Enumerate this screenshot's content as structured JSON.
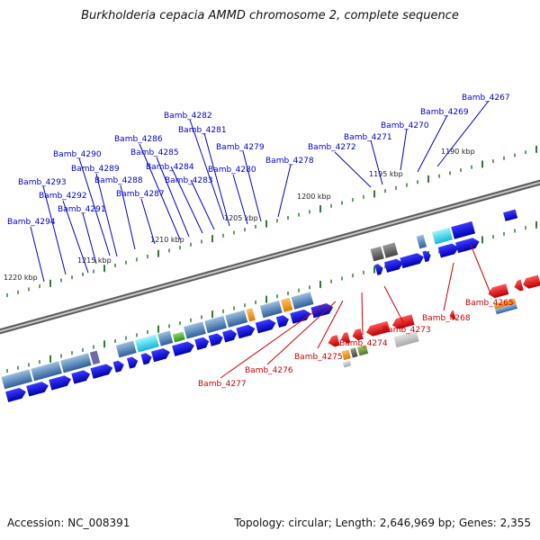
{
  "title": "Burkholderia cepacia AMMD chromosome 2, complete sequence",
  "footer": {
    "accession": "Accession: NC_008391",
    "summary": "Topology: circular; Length: 2,646,969 bp; Genes: 2,355"
  },
  "colors": {
    "forward_label": "#0000cc",
    "reverse_label": "#cc0000",
    "forward_gene": "#1a1aee",
    "reverse_gene": "#ee1111",
    "tick": "#2e7d2e",
    "backbone": "#7a7a7a"
  },
  "scale_labels": [
    "1190 kbp",
    "1195 kbp",
    "1200 kbp",
    "1205 kbp",
    "1210 kbp",
    "1215 kbp",
    "1220 kbp"
  ],
  "forward_genes": [
    "Bamb_4267",
    "Bamb_4269",
    "Bamb_4270",
    "Bamb_4271",
    "Bamb_4272",
    "Bamb_4278",
    "Bamb_4279",
    "Bamb_4280",
    "Bamb_4281",
    "Bamb_4282",
    "Bamb_4283",
    "Bamb_4284",
    "Bamb_4285",
    "Bamb_4286",
    "Bamb_4287",
    "Bamb_4288",
    "Bamb_4289",
    "Bamb_4290",
    "Bamb_4291",
    "Bamb_4292",
    "Bamb_4293",
    "Bamb_4294"
  ],
  "reverse_genes": [
    "Bamb_4265",
    "Bamb_4268",
    "Bamb_4273",
    "Bamb_4274",
    "Bamb_4275",
    "Bamb_4276",
    "Bamb_4277"
  ]
}
